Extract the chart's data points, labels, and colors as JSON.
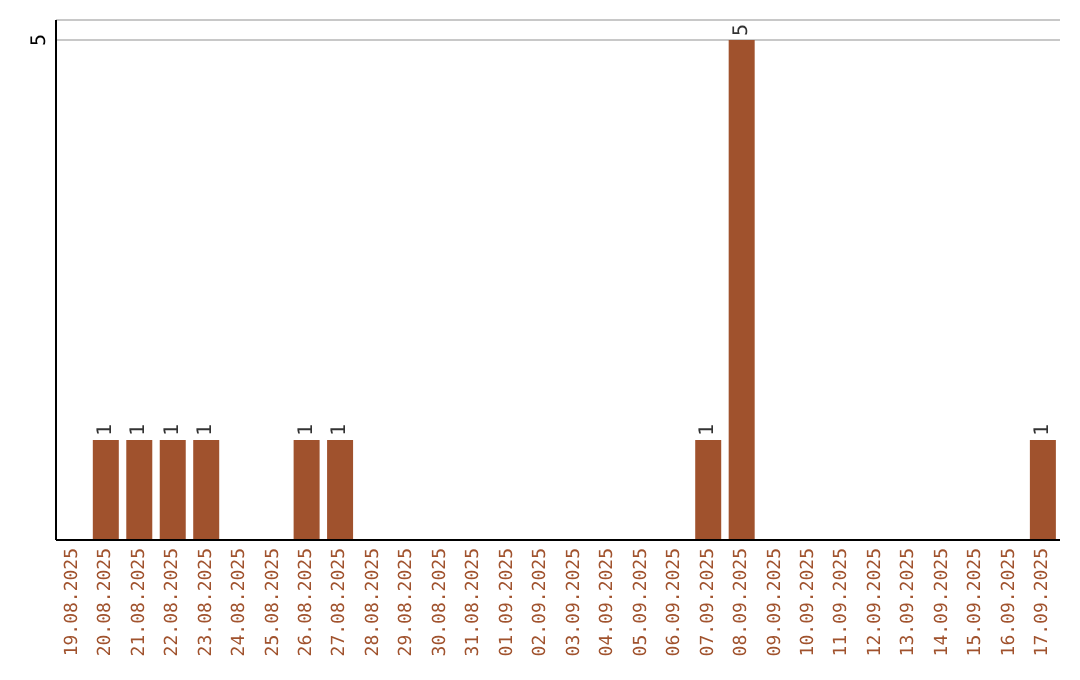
{
  "chart_data": {
    "type": "bar",
    "categories": [
      "19.08.2025",
      "20.08.2025",
      "21.08.2025",
      "22.08.2025",
      "23.08.2025",
      "24.08.2025",
      "25.08.2025",
      "26.08.2025",
      "27.08.2025",
      "28.08.2025",
      "29.08.2025",
      "30.08.2025",
      "31.08.2025",
      "01.09.2025",
      "02.09.2025",
      "03.09.2025",
      "04.09.2025",
      "05.09.2025",
      "06.09.2025",
      "07.09.2025",
      "08.09.2025",
      "09.09.2025",
      "10.09.2025",
      "11.09.2025",
      "12.09.2025",
      "13.09.2025",
      "14.09.2025",
      "15.09.2025",
      "16.09.2025",
      "17.09.2025"
    ],
    "values": [
      0,
      1,
      1,
      1,
      1,
      0,
      0,
      1,
      1,
      0,
      0,
      0,
      0,
      0,
      0,
      0,
      0,
      0,
      0,
      1,
      5,
      0,
      0,
      0,
      0,
      0,
      0,
      0,
      0,
      1
    ],
    "value_labels": [
      null,
      "1",
      "1",
      "1",
      "1",
      null,
      null,
      "1",
      "1",
      null,
      null,
      null,
      null,
      null,
      null,
      null,
      null,
      null,
      null,
      "1",
      "5",
      null,
      null,
      null,
      null,
      null,
      null,
      null,
      null,
      "1"
    ],
    "color": "#a0522d",
    "ylim": [
      0,
      5.2
    ],
    "yticks": [
      5
    ],
    "grid": "y"
  }
}
